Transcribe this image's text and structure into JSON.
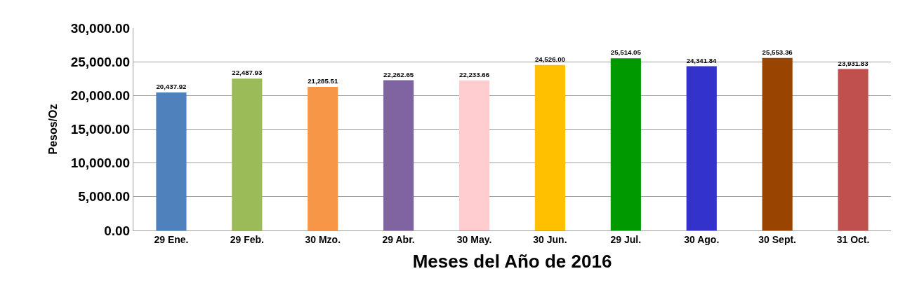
{
  "chart_data": {
    "type": "bar",
    "xlabel": "Meses del Año de 2016",
    "ylabel": "Pesos/Oz",
    "categories": [
      "29 Ene.",
      "29 Feb.",
      "30 Mzo.",
      "29 Abr.",
      "30 May.",
      "30 Jun.",
      "29 Jul.",
      "30 Ago.",
      "30 Sept.",
      "31 Oct."
    ],
    "values": [
      20437.92,
      22487.93,
      21285.51,
      22262.65,
      22233.66,
      24526.0,
      25514.05,
      24341.84,
      25553.36,
      23931.83
    ],
    "colors": [
      "#4f81bd",
      "#9bbb59",
      "#f79646",
      "#8064a2",
      "#ffccd0",
      "#ffc000",
      "#009900",
      "#3333cc",
      "#994400",
      "#c0504d"
    ],
    "ylim": [
      0,
      30000
    ],
    "yticks": [
      {
        "value": 0,
        "label": "0.00"
      },
      {
        "value": 5000,
        "label": "5,000.00"
      },
      {
        "value": 10000,
        "label": "10,000.00"
      },
      {
        "value": 15000,
        "label": "15,000.00"
      },
      {
        "value": 20000,
        "label": "20,000.00"
      },
      {
        "value": 25000,
        "label": "25,000.00"
      },
      {
        "value": 30000,
        "label": "30,000.00"
      }
    ],
    "value_labels": [
      "20,437.92",
      "22,487.93",
      "21,285.51",
      "22,262.65",
      "22,233.66",
      "24,526.00",
      "25,514.05",
      "24,341.84",
      "25,553.36",
      "23,931.83"
    ],
    "grid": "y"
  }
}
